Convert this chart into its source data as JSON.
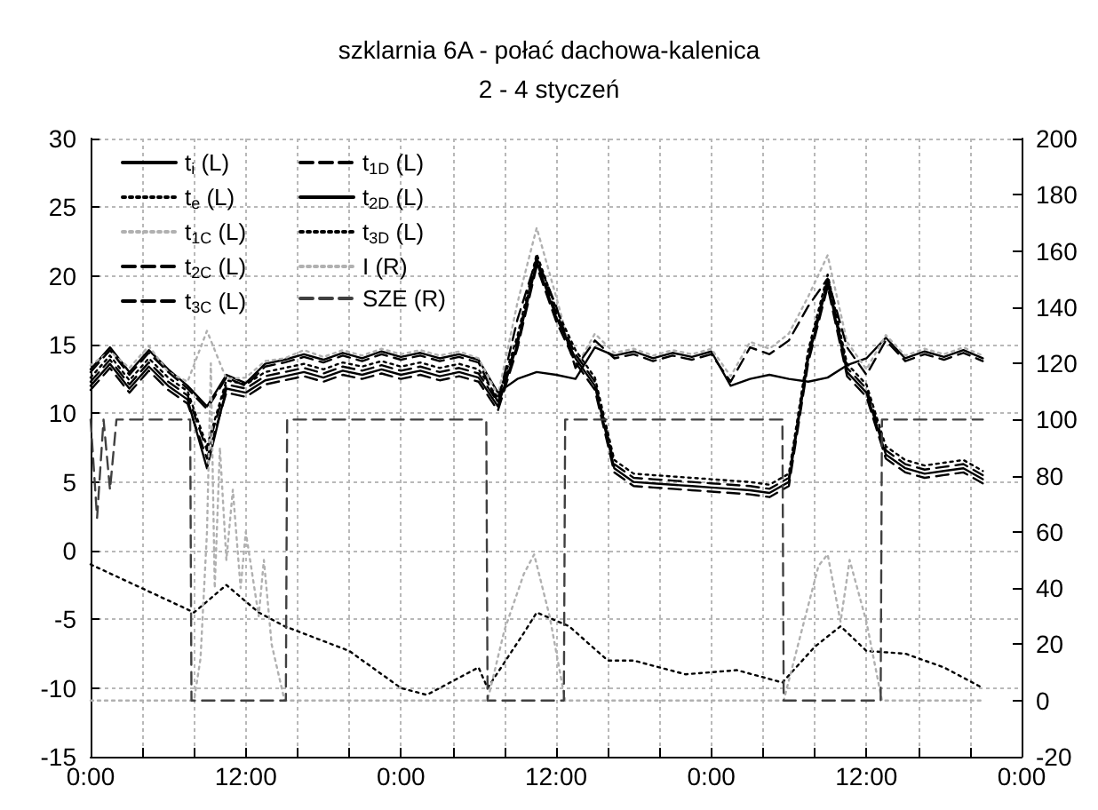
{
  "chart_data": {
    "type": "line",
    "title": "szklarnia 6A - połać dachowa-kalenica",
    "subtitle": "2 - 4 styczeń",
    "x": [
      "--01-02T00:00",
      "--01-02T01:30",
      "--01-02T03:00",
      "--01-02T04:30",
      "--01-02T06:00",
      "--01-02T07:30",
      "--01-02T09:00",
      "--01-02T10:30",
      "--01-02T12:00",
      "--01-02T13:30",
      "--01-02T15:00",
      "--01-02T16:30",
      "--01-02T18:00",
      "--01-02T19:30",
      "--01-02T21:00",
      "--01-02T22:30",
      "--01-03T00:00",
      "--01-03T01:30",
      "--01-03T03:00",
      "--01-03T04:30",
      "--01-03T06:00",
      "--01-03T07:30",
      "--01-03T09:00",
      "--01-03T10:30",
      "--01-03T12:00",
      "--01-03T13:30",
      "--01-03T15:00",
      "--01-03T16:30",
      "--01-03T18:00",
      "--01-03T19:30",
      "--01-03T21:00",
      "--01-03T22:30",
      "--01-04T00:00",
      "--01-04T01:30",
      "--01-04T03:00",
      "--01-04T04:30",
      "--01-04T06:00",
      "--01-04T07:30",
      "--01-04T09:00",
      "--01-04T10:30",
      "--01-04T12:00",
      "--01-04T13:30",
      "--01-04T15:00",
      "--01-04T16:30",
      "--01-04T18:00",
      "--01-04T19:30",
      "--01-04T21:00"
    ],
    "series": [
      {
        "name": "t$_{i}$ (L)",
        "color": "#000000",
        "line_style": "solid",
        "values": [
          13.2,
          14.8,
          13.0,
          14.6,
          13.2,
          12.0,
          10.5,
          12.8,
          12.2,
          13.6,
          13.9,
          14.3,
          13.9,
          14.4,
          14.0,
          14.5,
          14.1,
          14.4,
          14.0,
          14.3,
          13.9,
          11.5,
          12.5,
          13.0,
          12.8,
          12.5,
          14.8,
          14.2,
          14.5,
          14.0,
          14.4,
          14.1,
          14.5,
          12.0,
          12.5,
          12.8,
          12.5,
          12.3,
          12.6,
          13.5,
          14.0,
          15.5,
          14.0,
          14.5,
          14.1,
          14.6,
          14.0
        ]
      },
      {
        "name": "t$_{e}$ (L)",
        "color": "#000000",
        "line_style": "dotted",
        "x": [
          "--01-02T00:00",
          "--01-02T08:00",
          "--01-02T10:30",
          "--01-02T13:00",
          "--01-02T15:00",
          "--01-02T20:00",
          "--01-03T00:00",
          "--01-03T02:00",
          "--01-03T04:00",
          "--01-03T06:00",
          "--01-03T06:42",
          "--01-03T09:30",
          "--01-03T10:30",
          "--01-03T13:00",
          "--01-03T16:00",
          "--01-03T18:00",
          "--01-03T22:00",
          "--01-04T02:00",
          "--01-04T05:30",
          "--01-04T08:00",
          "--01-04T10:00",
          "--01-04T12:00",
          "--01-04T15:00",
          "--01-04T18:00",
          "--01-04T21:00"
        ],
        "values": [
          -1,
          -4.5,
          -2.5,
          -4.5,
          -5.5,
          -7.3,
          -10,
          -10.5,
          -9.5,
          -8.5,
          -10,
          -6,
          -4.5,
          -5.5,
          -8,
          -8,
          -9,
          -8.7,
          -9.6,
          -7,
          -5.5,
          -7.3,
          -7.5,
          -8.5,
          -10
        ]
      },
      {
        "name": "t$_{1C}$ (L)",
        "color": "#b0b0b0",
        "line_style": "dotted",
        "values": [
          13.5,
          14.5,
          13.3,
          14.9,
          13.0,
          12.3,
          16.0,
          12.5,
          12.6,
          13.8,
          14.0,
          14.6,
          14.1,
          14.6,
          14.2,
          14.7,
          14.3,
          14.6,
          14.2,
          14.5,
          14.0,
          11.3,
          18.0,
          23.5,
          18.5,
          13.3,
          15.8,
          14.4,
          14.7,
          14.2,
          14.6,
          14.3,
          14.7,
          12.7,
          15.2,
          14.7,
          15.8,
          18.5,
          21.5,
          15.2,
          13.2,
          15.7,
          14.2,
          14.7,
          14.3,
          14.8,
          14.2
        ]
      },
      {
        "name": "t$_{2C}$ (L)",
        "color": "#000000",
        "line_style": "dashed",
        "values": [
          13.0,
          14.6,
          12.8,
          14.4,
          13.0,
          11.8,
          10.3,
          12.6,
          12.0,
          13.4,
          13.7,
          14.1,
          13.7,
          14.2,
          13.8,
          14.3,
          13.9,
          14.2,
          13.8,
          14.1,
          13.7,
          10.8,
          16.8,
          21.3,
          17.8,
          13.3,
          15.3,
          14.0,
          14.3,
          13.8,
          14.2,
          13.9,
          14.3,
          12.3,
          14.8,
          14.3,
          15.3,
          17.8,
          19.8,
          14.8,
          12.8,
          15.3,
          13.8,
          14.3,
          13.9,
          14.4,
          13.8
        ]
      },
      {
        "name": "t$_{3C}$ (L)",
        "color": "#000000",
        "line_style": "dashed",
        "values": [
          11.7,
          13.3,
          11.5,
          13.1,
          11.7,
          10.7,
          6.7,
          11.5,
          11.2,
          12.1,
          12.4,
          12.7,
          12.3,
          12.8,
          12.5,
          12.9,
          12.5,
          12.8,
          12.4,
          12.7,
          12.3,
          10.2,
          14.7,
          20.7,
          16.7,
          13.7,
          11.7,
          5.7,
          4.7,
          4.6,
          4.5,
          4.4,
          4.3,
          4.2,
          4.1,
          3.9,
          4.7,
          13.7,
          19.2,
          12.7,
          11.2,
          6.7,
          5.7,
          5.3,
          5.5,
          5.7,
          4.9
        ]
      },
      {
        "name": "t$_{1D}$ (L)",
        "color": "#000000",
        "line_style": "dashed",
        "values": [
          12.3,
          13.9,
          12.1,
          13.7,
          12.3,
          11.3,
          7.3,
          12.1,
          11.8,
          12.7,
          13.0,
          13.3,
          12.9,
          13.4,
          13.1,
          13.5,
          13.1,
          13.4,
          13.0,
          13.3,
          12.9,
          10.8,
          15.3,
          21.3,
          17.3,
          14.3,
          12.3,
          6.3,
          5.3,
          5.2,
          5.1,
          5.0,
          4.9,
          4.8,
          4.7,
          4.5,
          5.3,
          14.3,
          19.8,
          13.3,
          11.8,
          7.3,
          6.3,
          5.9,
          6.1,
          6.3,
          5.5
        ]
      },
      {
        "name": "t$_{2D}$ (L)",
        "color": "#000000",
        "line_style": "solid",
        "values": [
          12.0,
          13.6,
          11.8,
          13.4,
          12.0,
          11.0,
          6.0,
          11.8,
          11.5,
          12.4,
          12.7,
          13.0,
          12.6,
          13.1,
          12.8,
          13.2,
          12.8,
          13.1,
          12.7,
          13.0,
          12.6,
          10.5,
          15.0,
          21.0,
          17.0,
          14.0,
          12.0,
          6.0,
          5.0,
          4.9,
          4.8,
          4.7,
          4.6,
          4.5,
          4.4,
          4.2,
          5.0,
          14.0,
          19.5,
          13.0,
          11.5,
          7.0,
          6.0,
          5.6,
          5.8,
          6.0,
          5.2
        ]
      },
      {
        "name": "t$_{3D}$ (L)",
        "color": "#000000",
        "line_style": "dotted",
        "values": [
          12.6,
          14.2,
          12.4,
          14.0,
          12.6,
          11.6,
          7.6,
          12.4,
          12.1,
          13.0,
          13.3,
          13.6,
          13.2,
          13.7,
          13.4,
          13.8,
          13.4,
          13.7,
          13.3,
          13.6,
          13.2,
          11.1,
          15.6,
          21.6,
          17.6,
          14.6,
          12.6,
          6.6,
          5.6,
          5.5,
          5.4,
          5.3,
          5.2,
          5.1,
          5.0,
          4.8,
          5.6,
          14.6,
          20.1,
          13.6,
          12.1,
          7.6,
          6.6,
          6.2,
          6.4,
          6.6,
          5.8
        ]
      },
      {
        "name": "I (R)",
        "color": "#b0b0b0",
        "line_style": "dotted",
        "axis": "y2",
        "x": [
          "--01-02T00:00",
          "--01-02T08:00",
          "--01-02T08:30",
          "--01-02T09:00",
          "--01-02T09:18",
          "--01-02T09:36",
          "--01-02T10:00",
          "--01-02T10:30",
          "--01-02T11:00",
          "--01-02T11:36",
          "--01-02T12:00",
          "--01-02T13:00",
          "--01-02T13:24",
          "--01-02T14:00",
          "--01-02T15:00",
          "--01-03T06:42",
          "--01-03T08:00",
          "--01-03T09:30",
          "--01-03T10:18",
          "--01-03T11:30",
          "--01-03T12:42",
          "--01-04T05:36",
          "--01-04T07:00",
          "--01-04T08:18",
          "--01-04T09:00",
          "--01-04T10:00",
          "--01-04T10:42",
          "--01-04T12:00",
          "--01-04T13:12",
          "--01-04T21:00"
        ],
        "values": [
          0,
          0,
          15,
          60,
          120,
          40,
          90,
          50,
          75,
          40,
          60,
          30,
          50,
          20,
          0,
          0,
          25,
          45,
          52,
          30,
          0,
          0,
          25,
          48,
          52,
          28,
          50,
          28,
          0,
          0
        ]
      },
      {
        "name": "SZE (R)",
        "color": "#404040",
        "line_style": "dashed",
        "axis": "y2",
        "x": [
          "--01-02T00:00",
          "--01-02T00:30",
          "--01-02T01:00",
          "--01-02T01:30",
          "--01-02T02:00",
          "--01-02T02:30",
          "--01-02T03:00",
          "--01-02T07:42",
          "--01-02T07:48",
          "--01-02T15:06",
          "--01-02T15:12",
          "--01-03T06:36",
          "--01-03T06:42",
          "--01-03T12:36",
          "--01-03T12:42",
          "--01-04T05:30",
          "--01-04T05:36",
          "--01-04T13:06",
          "--01-04T13:12",
          "--01-04T21:00"
        ],
        "values": [
          100,
          65,
          100,
          75,
          100,
          100,
          100,
          100,
          0,
          0,
          100,
          100,
          0,
          0,
          100,
          100,
          0,
          0,
          100,
          100
        ]
      }
    ],
    "xlim": [
      "--01-02T00:00",
      "--01-05T00:00"
    ],
    "xticks": [
      {
        "value": "--01-02T00:00",
        "label": "0:00"
      },
      {
        "value": "--01-02T04:00",
        "label": null
      },
      {
        "value": "--01-02T08:00",
        "label": null
      },
      {
        "value": "--01-02T12:00",
        "label": "12:00"
      },
      {
        "value": "--01-02T16:00",
        "label": null
      },
      {
        "value": "--01-02T20:00",
        "label": null
      },
      {
        "value": "--01-03T00:00",
        "label": "0:00"
      },
      {
        "value": "--01-03T04:00",
        "label": null
      },
      {
        "value": "--01-03T08:00",
        "label": null
      },
      {
        "value": "--01-03T12:00",
        "label": "12:00"
      },
      {
        "value": "--01-03T16:00",
        "label": null
      },
      {
        "value": "--01-03T20:00",
        "label": null
      },
      {
        "value": "--01-04T00:00",
        "label": "0:00"
      },
      {
        "value": "--01-04T04:00",
        "label": null
      },
      {
        "value": "--01-04T08:00",
        "label": null
      },
      {
        "value": "--01-04T12:00",
        "label": "12:00"
      },
      {
        "value": "--01-04T16:00",
        "label": null
      },
      {
        "value": "--01-04T20:00",
        "label": null
      },
      {
        "value": "--01-05T00:00",
        "label": "0:00"
      }
    ],
    "ylim": [
      -15,
      30
    ],
    "yticks": [
      -15,
      -10,
      -5,
      0,
      5,
      10,
      15,
      20,
      25,
      30
    ],
    "y2lim": [
      -20,
      200
    ],
    "y2ticks": [
      -20,
      0,
      20,
      40,
      60,
      80,
      100,
      120,
      140,
      160,
      180,
      200
    ],
    "grid": true,
    "legend": "top left",
    "marker": "none"
  }
}
